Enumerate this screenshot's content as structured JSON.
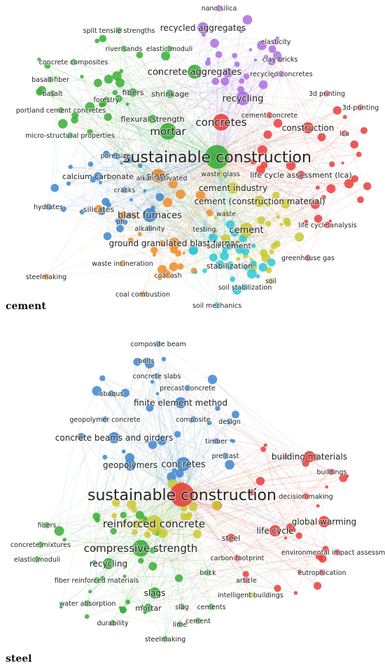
{
  "colors": {
    "red": "#e8403c",
    "green": "#3aae37",
    "blue": "#3d86d0",
    "yellow": "#c9c935",
    "purple": "#ad6ee0",
    "cyan": "#2ec8d6",
    "orange": "#f08c2a"
  },
  "networks": [
    {
      "caption": "cement",
      "nodes": [
        {
          "label": "sustainable construction",
          "cluster": "green",
          "weight": 10
        },
        {
          "label": "concretes",
          "cluster": "red",
          "weight": 6
        },
        {
          "label": "mortar",
          "cluster": "green",
          "weight": 6
        },
        {
          "label": "concrete aggregates",
          "cluster": "green",
          "weight": 5
        },
        {
          "label": "recycling",
          "cluster": "purple",
          "weight": 5
        },
        {
          "label": "slags",
          "cluster": "orange",
          "weight": 5
        },
        {
          "label": "blast furnaces",
          "cluster": "blue",
          "weight": 5
        },
        {
          "label": "cement",
          "cluster": "yellow",
          "weight": 5
        },
        {
          "label": "cement industry",
          "cluster": "yellow",
          "weight": 4
        },
        {
          "label": "cement (construction material)",
          "cluster": "yellow",
          "weight": 4
        },
        {
          "label": "construction",
          "cluster": "red",
          "weight": 4
        },
        {
          "label": "recycled aggregates",
          "cluster": "purple",
          "weight": 4
        },
        {
          "label": "ground granulated blast furnac",
          "cluster": "orange",
          "weight": 4
        },
        {
          "label": "life cycle assessment (lca)",
          "cluster": "red",
          "weight": 3
        },
        {
          "label": "fibers",
          "cluster": "green",
          "weight": 3
        },
        {
          "label": "shrinkage",
          "cluster": "green",
          "weight": 3
        },
        {
          "label": "flexural strength",
          "cluster": "green",
          "weight": 3
        },
        {
          "label": "silicates",
          "cluster": "orange",
          "weight": 3
        },
        {
          "label": "calcium carbonate",
          "cluster": "blue",
          "weight": 3
        },
        {
          "label": "stabilization",
          "cluster": "cyan",
          "weight": 3
        },
        {
          "label": "soil cement",
          "cluster": "cyan",
          "weight": 3
        },
        {
          "label": "life cycle analysis",
          "cluster": "red",
          "weight": 2
        },
        {
          "label": "elastic moduli",
          "cluster": "green",
          "weight": 2
        },
        {
          "label": "split tensile strengths",
          "cluster": "green",
          "weight": 2
        },
        {
          "label": "nano silica",
          "cluster": "purple",
          "weight": 2
        },
        {
          "label": "elasticity",
          "cluster": "purple",
          "weight": 2
        },
        {
          "label": "clay bricks",
          "cluster": "purple",
          "weight": 2
        },
        {
          "label": "recycled concretes",
          "cluster": "purple",
          "weight": 2
        },
        {
          "label": "3d printing",
          "cluster": "red",
          "weight": 2
        },
        {
          "label": "3d-printing",
          "cluster": "red",
          "weight": 2
        },
        {
          "label": "cement concrete",
          "cluster": "red",
          "weight": 2
        },
        {
          "label": "lca",
          "cluster": "red",
          "weight": 2
        },
        {
          "label": "river sands",
          "cluster": "green",
          "weight": 2
        },
        {
          "label": "concrete composites",
          "cluster": "green",
          "weight": 2
        },
        {
          "label": "basalt fiber",
          "cluster": "green",
          "weight": 2
        },
        {
          "label": "basalt",
          "cluster": "green",
          "weight": 2
        },
        {
          "label": "forestry",
          "cluster": "green",
          "weight": 2
        },
        {
          "label": "portland cement concretes",
          "cluster": "green",
          "weight": 2
        },
        {
          "label": "micro-structural properties",
          "cluster": "green",
          "weight": 2
        },
        {
          "label": "pore size",
          "cluster": "blue",
          "weight": 2
        },
        {
          "label": "alkali-activated",
          "cluster": "blue",
          "weight": 2
        },
        {
          "label": "waste glass",
          "cluster": "yellow",
          "weight": 2
        },
        {
          "label": "waste",
          "cluster": "yellow",
          "weight": 2
        },
        {
          "label": "cracks",
          "cluster": "blue",
          "weight": 2
        },
        {
          "label": "hydrates",
          "cluster": "blue",
          "weight": 2
        },
        {
          "label": "ph",
          "cluster": "blue",
          "weight": 2
        },
        {
          "label": "alkalinity",
          "cluster": "blue",
          "weight": 2
        },
        {
          "label": "testing",
          "cluster": "cyan",
          "weight": 2
        },
        {
          "label": "greenhouse gas",
          "cluster": "red",
          "weight": 2
        },
        {
          "label": "waste incineration",
          "cluster": "orange",
          "weight": 2
        },
        {
          "label": "coal ash",
          "cluster": "orange",
          "weight": 2
        },
        {
          "label": "steelmaking",
          "cluster": "orange",
          "weight": 2
        },
        {
          "label": "soil stabilization",
          "cluster": "cyan",
          "weight": 2
        },
        {
          "label": "soil",
          "cluster": "yellow",
          "weight": 2
        },
        {
          "label": "coal combustion",
          "cluster": "orange",
          "weight": 2
        },
        {
          "label": "soil mechanics",
          "cluster": "cyan",
          "weight": 2
        }
      ]
    },
    {
      "caption": "steel",
      "nodes": [
        {
          "label": "sustainable construction",
          "cluster": "red",
          "weight": 10
        },
        {
          "label": "reinforced concrete",
          "cluster": "yellow",
          "weight": 6
        },
        {
          "label": "compressive strength",
          "cluster": "green",
          "weight": 6
        },
        {
          "label": "concretes",
          "cluster": "blue",
          "weight": 5
        },
        {
          "label": "finite element method",
          "cluster": "blue",
          "weight": 4
        },
        {
          "label": "concrete beams and girders",
          "cluster": "blue",
          "weight": 4
        },
        {
          "label": "geopolymers",
          "cluster": "blue",
          "weight": 4
        },
        {
          "label": "life cycle",
          "cluster": "red",
          "weight": 4
        },
        {
          "label": "global warming",
          "cluster": "red",
          "weight": 4
        },
        {
          "label": "building materials",
          "cluster": "red",
          "weight": 4
        },
        {
          "label": "recycling",
          "cluster": "green",
          "weight": 4
        },
        {
          "label": "slags",
          "cluster": "green",
          "weight": 4
        },
        {
          "label": "mortar",
          "cluster": "green",
          "weight": 3
        },
        {
          "label": "steel",
          "cluster": "red",
          "weight": 3
        },
        {
          "label": "composite beam",
          "cluster": "blue",
          "weight": 2
        },
        {
          "label": "bolts",
          "cluster": "blue",
          "weight": 2
        },
        {
          "label": "concrete slabs",
          "cluster": "blue",
          "weight": 2
        },
        {
          "label": "abaqus",
          "cluster": "blue",
          "weight": 2
        },
        {
          "label": "precast concrete",
          "cluster": "blue",
          "weight": 2
        },
        {
          "label": "geopolymer concrete",
          "cluster": "blue",
          "weight": 2
        },
        {
          "label": "composite",
          "cluster": "blue",
          "weight": 2
        },
        {
          "label": "design",
          "cluster": "blue",
          "weight": 2
        },
        {
          "label": "timber",
          "cluster": "blue",
          "weight": 2
        },
        {
          "label": "pre-cast",
          "cluster": "blue",
          "weight": 2
        },
        {
          "label": "buildings",
          "cluster": "red",
          "weight": 2
        },
        {
          "label": "decision making",
          "cluster": "red",
          "weight": 2
        },
        {
          "label": "fibers",
          "cluster": "green",
          "weight": 2
        },
        {
          "label": "concrete mixtures",
          "cluster": "green",
          "weight": 2
        },
        {
          "label": "elastic moduli",
          "cluster": "green",
          "weight": 2
        },
        {
          "label": "carbon footprint",
          "cluster": "red",
          "weight": 2
        },
        {
          "label": "environmental impact assessmen",
          "cluster": "red",
          "weight": 2
        },
        {
          "label": "fiber reinforced materials",
          "cluster": "green",
          "weight": 2
        },
        {
          "label": "brick",
          "cluster": "green",
          "weight": 2
        },
        {
          "label": "article",
          "cluster": "red",
          "weight": 2
        },
        {
          "label": "eutrophication",
          "cluster": "red",
          "weight": 2
        },
        {
          "label": "water absorption",
          "cluster": "green",
          "weight": 2
        },
        {
          "label": "intelligent buildings",
          "cluster": "yellow",
          "weight": 2
        },
        {
          "label": "slag",
          "cluster": "green",
          "weight": 2
        },
        {
          "label": "cements",
          "cluster": "green",
          "weight": 2
        },
        {
          "label": "durability",
          "cluster": "green",
          "weight": 2
        },
        {
          "label": "lime",
          "cluster": "green",
          "weight": 2
        },
        {
          "label": "cement",
          "cluster": "green",
          "weight": 2
        },
        {
          "label": "steelmaking",
          "cluster": "green",
          "weight": 2
        }
      ]
    }
  ]
}
